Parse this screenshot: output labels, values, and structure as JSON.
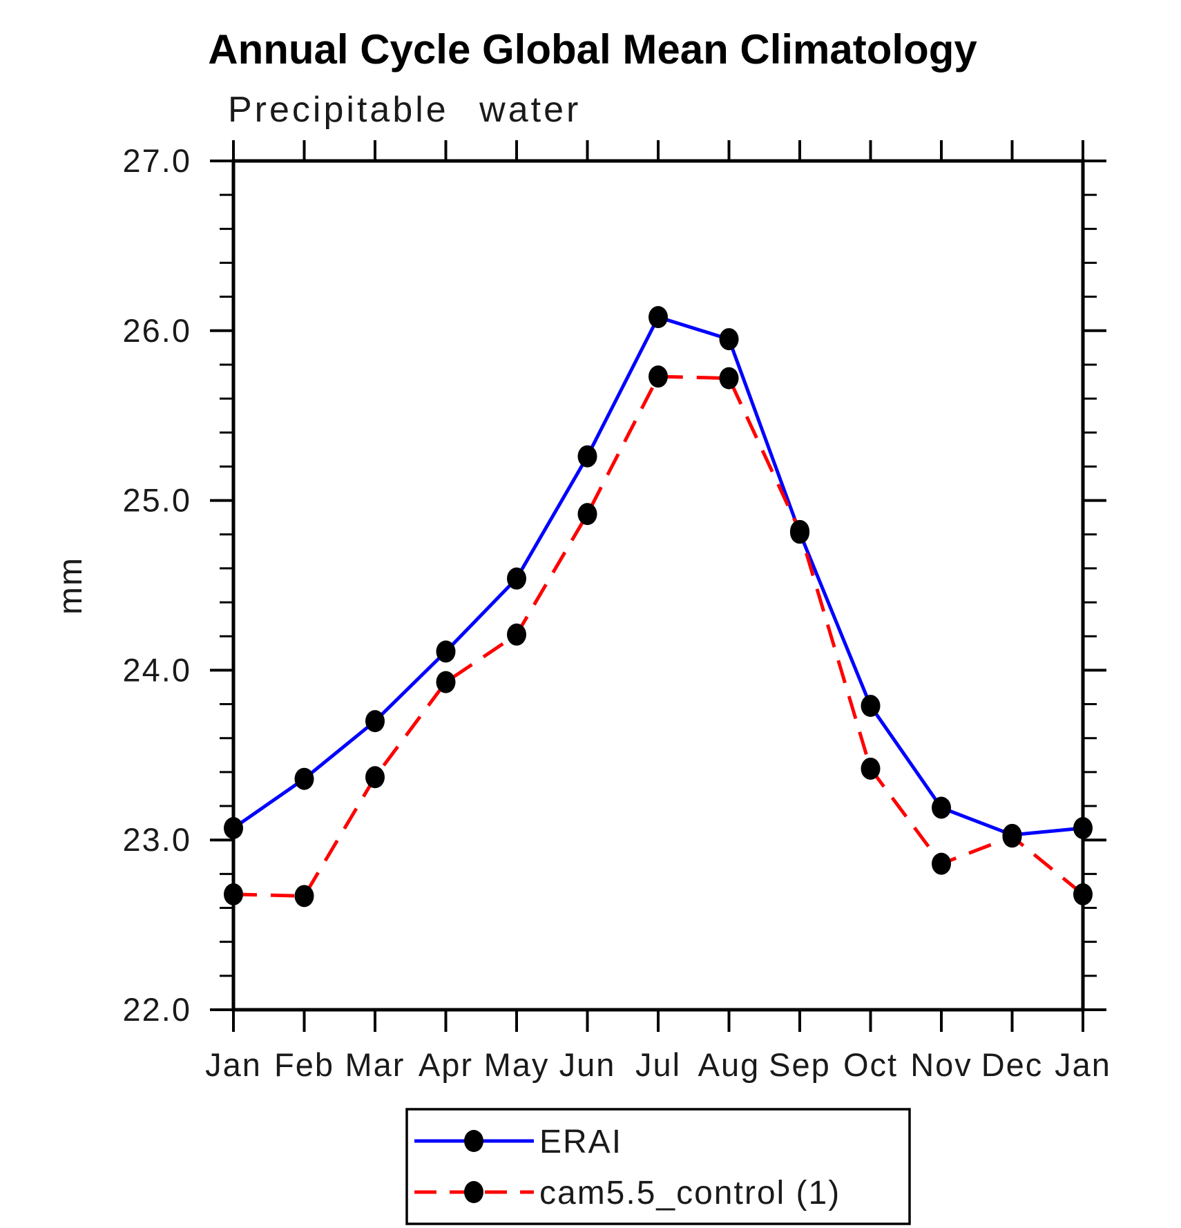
{
  "title": "Annual Cycle Global Mean Climatology",
  "subtitle": "Precipitable water",
  "y_axis_label": "mm",
  "colors": {
    "erai_line": "#0000ff",
    "cam_line": "#ff0000",
    "marker": "#000000",
    "axis": "#000000",
    "text": "#1a1a1a"
  },
  "legend": {
    "entries": [
      {
        "label": "ERAI"
      },
      {
        "label": "cam5.5_control (1)"
      }
    ]
  },
  "chart_data": {
    "type": "line",
    "title": "Annual Cycle Global Mean Climatology",
    "subtitle": "Precipitable water",
    "xlabel": "",
    "ylabel": "mm",
    "ylim": [
      22.0,
      27.0
    ],
    "y_major_tick_values": [
      22.0,
      23.0,
      24.0,
      25.0,
      26.0,
      27.0
    ],
    "y_tick_labels": [
      "22.0",
      "23.0",
      "24.0",
      "25.0",
      "26.0",
      "27.0"
    ],
    "y_minor_step": 0.2,
    "grid": false,
    "legend_position": "bottom-center",
    "categories": [
      "Jan",
      "Feb",
      "Mar",
      "Apr",
      "May",
      "Jun",
      "Jul",
      "Aug",
      "Sep",
      "Oct",
      "Nov",
      "Dec",
      "Jan"
    ],
    "series": [
      {
        "name": "ERAI",
        "color": "#0000ff",
        "line_style": "solid",
        "marker": "filled-black-circle",
        "values": [
          23.07,
          23.36,
          23.7,
          24.11,
          24.54,
          25.26,
          26.08,
          25.95,
          24.81,
          23.79,
          23.19,
          23.03,
          23.07
        ]
      },
      {
        "name": "cam5.5_control (1)",
        "color": "#ff0000",
        "line_style": "dashed",
        "marker": "filled-black-circle",
        "values": [
          22.68,
          22.67,
          23.37,
          23.93,
          24.21,
          24.92,
          25.73,
          25.72,
          24.82,
          23.42,
          22.86,
          23.02,
          22.68
        ]
      }
    ]
  }
}
